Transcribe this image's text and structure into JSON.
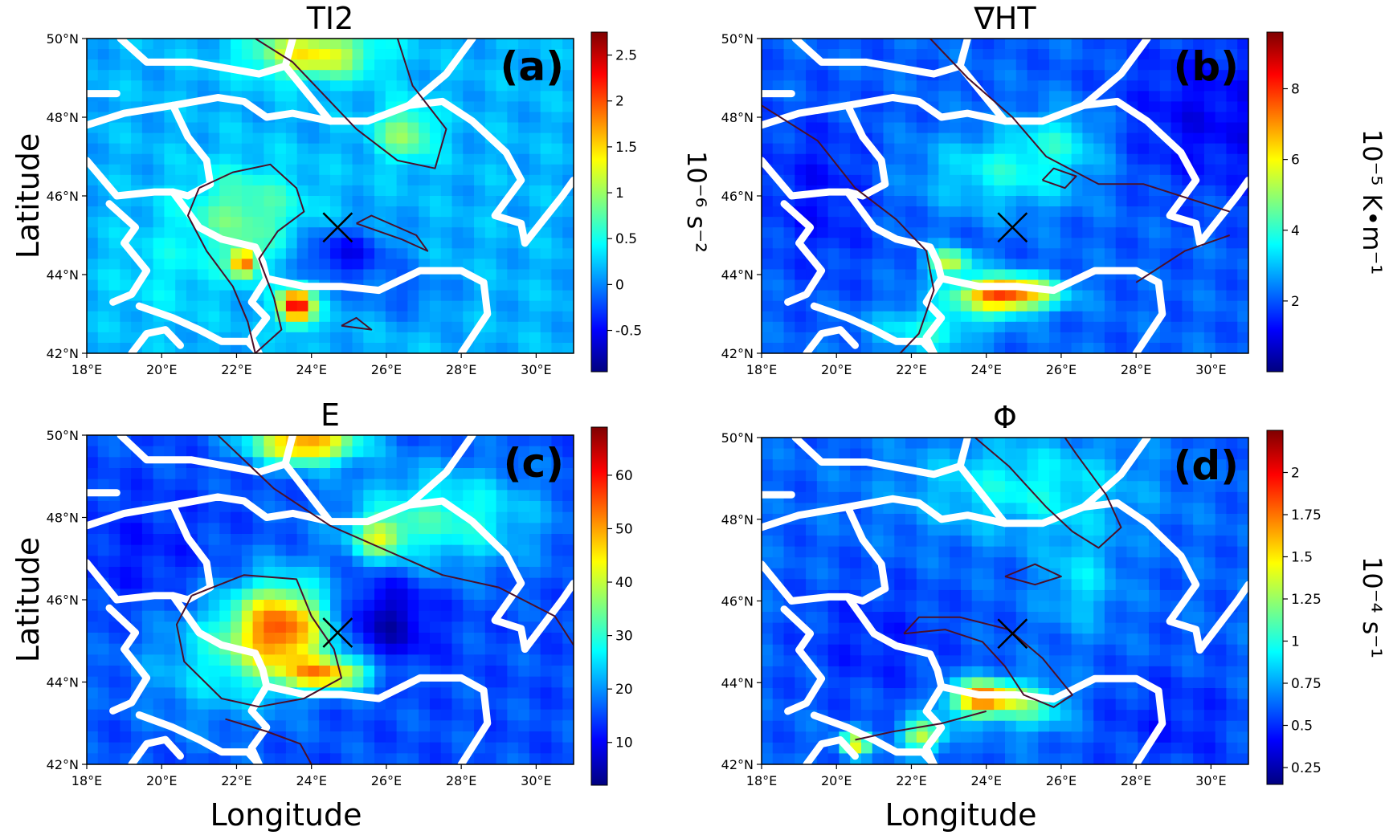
{
  "figure": {
    "shared_x_label": "Longitude",
    "shared_y_label": "Latitude",
    "colormap": [
      "#00007f",
      "#0000ff",
      "#007fff",
      "#00ffff",
      "#7fff7f",
      "#ffff00",
      "#ff7f00",
      "#ff0000",
      "#7f0000"
    ],
    "map_extent": {
      "lon": [
        18,
        31
      ],
      "lat": [
        42,
        50
      ]
    },
    "storm_marker": {
      "lon": 24.7,
      "lat": 45.2,
      "symbol": "×"
    },
    "border_color": "#ffffff",
    "contour_color": "#4a0f2a"
  },
  "panels": [
    {
      "title": "TI2",
      "letter": "(a)",
      "cbar_unit": "10⁻⁶ s⁻²",
      "cbar_ticks": [
        "-0.5",
        "0",
        "0.5",
        "1",
        "1.5",
        "2",
        "2.5"
      ],
      "cbar_range": [
        -0.95,
        2.75
      ],
      "x_ticks": [
        "18°E",
        "20°E",
        "22°E",
        "24°E",
        "26°E",
        "28°E",
        "30°E"
      ],
      "y_ticks": [
        "42°N",
        "44°N",
        "46°N",
        "48°N",
        "50°N"
      ],
      "show_xlabel": false,
      "show_ylabel": true
    },
    {
      "title": "∇HT",
      "letter": "(b)",
      "cbar_unit": "10⁻⁵ K•m⁻¹",
      "cbar_ticks": [
        "2",
        "4",
        "6",
        "8"
      ],
      "cbar_range": [
        0,
        9.6
      ],
      "x_ticks": [
        "18°E",
        "20°E",
        "22°E",
        "24°E",
        "26°E",
        "28°E",
        "30°E"
      ],
      "y_ticks": [
        "42°N",
        "44°N",
        "46°N",
        "48°N",
        "50°N"
      ],
      "show_xlabel": false,
      "show_ylabel": false
    },
    {
      "title": "E",
      "letter": "(c)",
      "cbar_unit": "",
      "cbar_ticks": [
        "10",
        "20",
        "30",
        "40",
        "50",
        "60"
      ],
      "cbar_range": [
        2,
        69
      ],
      "x_ticks": [
        "18°E",
        "20°E",
        "22°E",
        "24°E",
        "26°E",
        "28°E",
        "30°E"
      ],
      "y_ticks": [
        "42°N",
        "44°N",
        "46°N",
        "48°N",
        "50°N"
      ],
      "show_xlabel": true,
      "show_ylabel": true
    },
    {
      "title": "Φ",
      "letter": "(d)",
      "cbar_unit": "10⁻⁴ s⁻¹",
      "cbar_ticks": [
        "0.25",
        "0.5",
        "0.75",
        "1",
        "1.25",
        "1.5",
        "1.75",
        "2"
      ],
      "cbar_range": [
        0.15,
        2.25
      ],
      "x_ticks": [
        "18°E",
        "20°E",
        "22°E",
        "24°E",
        "26°E",
        "28°E",
        "30°E"
      ],
      "y_ticks": [
        "42°N",
        "44°N",
        "46°N",
        "48°N",
        "50°N"
      ],
      "show_xlabel": true,
      "show_ylabel": false
    }
  ]
}
